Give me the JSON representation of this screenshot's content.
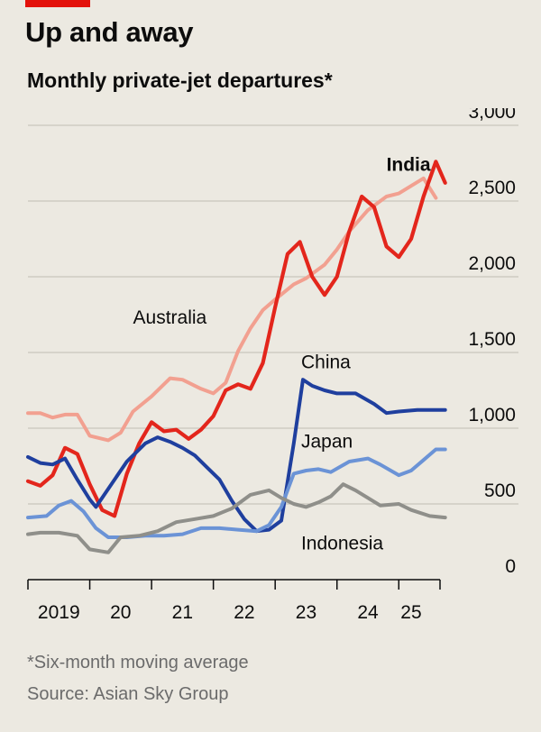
{
  "header": {
    "title": "Up and away",
    "subtitle": "Monthly private-jet departures*"
  },
  "footer": {
    "footnote": "*Six-month moving average",
    "source": "Source: Asian Sky Group"
  },
  "colors": {
    "background": "#ece9e1",
    "accent": "#e3120b",
    "india": "#e3261c",
    "australia": "#f2a090",
    "china": "#1f3f9e",
    "japan": "#6b93d6",
    "indonesia": "#8f8f8a",
    "grid": "#c9c6bd"
  },
  "chart_data": {
    "type": "line",
    "title": "Monthly private-jet departures*",
    "xlabel": "",
    "ylabel": "",
    "x_range": [
      2019.0,
      2025.667
    ],
    "ylim": [
      0,
      3000
    ],
    "y_ticks": [
      0,
      500,
      1000,
      1500,
      2000,
      2500,
      3000
    ],
    "y_tick_labels": [
      "0",
      "500",
      "1,000",
      "1,500",
      "2,000",
      "2,500",
      "3,000"
    ],
    "x_ticks": [
      {
        "value": 2019.5,
        "label": "2019"
      },
      {
        "value": 2020.5,
        "label": "20"
      },
      {
        "value": 2021.5,
        "label": "21"
      },
      {
        "value": 2022.5,
        "label": "22"
      },
      {
        "value": 2023.5,
        "label": "23"
      },
      {
        "value": 2024.5,
        "label": "24"
      },
      {
        "value": 2025.2,
        "label": "25"
      }
    ],
    "year_boundaries": [
      2019.0,
      2020.0,
      2021.0,
      2022.0,
      2023.0,
      2024.0,
      2025.0
    ],
    "grid": true,
    "legend": "direct labels",
    "series": [
      {
        "key": "australia",
        "name": "Australia",
        "label_at": [
          2020.7,
          1690
        ],
        "points": [
          [
            2019.0,
            1100
          ],
          [
            2019.2,
            1100
          ],
          [
            2019.4,
            1070
          ],
          [
            2019.6,
            1090
          ],
          [
            2019.8,
            1090
          ],
          [
            2020.0,
            950
          ],
          [
            2020.3,
            920
          ],
          [
            2020.5,
            970
          ],
          [
            2020.7,
            1110
          ],
          [
            2021.0,
            1210
          ],
          [
            2021.3,
            1330
          ],
          [
            2021.5,
            1320
          ],
          [
            2021.8,
            1260
          ],
          [
            2022.0,
            1230
          ],
          [
            2022.2,
            1300
          ],
          [
            2022.4,
            1510
          ],
          [
            2022.6,
            1660
          ],
          [
            2022.8,
            1780
          ],
          [
            2023.0,
            1850
          ],
          [
            2023.3,
            1950
          ],
          [
            2023.5,
            1990
          ],
          [
            2023.8,
            2080
          ],
          [
            2024.0,
            2180
          ],
          [
            2024.2,
            2300
          ],
          [
            2024.5,
            2440
          ],
          [
            2024.8,
            2530
          ],
          [
            2025.0,
            2550
          ],
          [
            2025.2,
            2600
          ],
          [
            2025.4,
            2650
          ],
          [
            2025.6,
            2520
          ]
        ]
      },
      {
        "key": "india",
        "name": "India",
        "label_at": [
          2024.8,
          2700
        ],
        "points": [
          [
            2019.0,
            650
          ],
          [
            2019.2,
            620
          ],
          [
            2019.4,
            690
          ],
          [
            2019.6,
            870
          ],
          [
            2019.8,
            830
          ],
          [
            2020.0,
            630
          ],
          [
            2020.2,
            460
          ],
          [
            2020.4,
            420
          ],
          [
            2020.6,
            700
          ],
          [
            2020.8,
            900
          ],
          [
            2021.0,
            1040
          ],
          [
            2021.2,
            980
          ],
          [
            2021.4,
            990
          ],
          [
            2021.6,
            930
          ],
          [
            2021.8,
            990
          ],
          [
            2022.0,
            1080
          ],
          [
            2022.2,
            1250
          ],
          [
            2022.4,
            1290
          ],
          [
            2022.6,
            1260
          ],
          [
            2022.8,
            1430
          ],
          [
            2023.0,
            1800
          ],
          [
            2023.2,
            2150
          ],
          [
            2023.4,
            2230
          ],
          [
            2023.6,
            2000
          ],
          [
            2023.8,
            1880
          ],
          [
            2024.0,
            2000
          ],
          [
            2024.2,
            2300
          ],
          [
            2024.4,
            2530
          ],
          [
            2024.6,
            2460
          ],
          [
            2024.8,
            2200
          ],
          [
            2025.0,
            2130
          ],
          [
            2025.2,
            2250
          ],
          [
            2025.4,
            2530
          ],
          [
            2025.6,
            2760
          ],
          [
            2025.75,
            2620
          ]
        ]
      },
      {
        "key": "china",
        "name": "China",
        "label_at": [
          2023.42,
          1395
        ],
        "points": [
          [
            2019.0,
            810
          ],
          [
            2019.2,
            770
          ],
          [
            2019.4,
            760
          ],
          [
            2019.6,
            800
          ],
          [
            2019.8,
            660
          ],
          [
            2020.0,
            530
          ],
          [
            2020.1,
            480
          ],
          [
            2020.3,
            600
          ],
          [
            2020.6,
            780
          ],
          [
            2020.9,
            900
          ],
          [
            2021.1,
            940
          ],
          [
            2021.3,
            910
          ],
          [
            2021.5,
            870
          ],
          [
            2021.7,
            820
          ],
          [
            2021.9,
            740
          ],
          [
            2022.1,
            660
          ],
          [
            2022.3,
            520
          ],
          [
            2022.5,
            400
          ],
          [
            2022.7,
            320
          ],
          [
            2022.9,
            330
          ],
          [
            2023.1,
            390
          ],
          [
            2023.3,
            900
          ],
          [
            2023.45,
            1320
          ],
          [
            2023.6,
            1280
          ],
          [
            2023.8,
            1250
          ],
          [
            2024.0,
            1230
          ],
          [
            2024.3,
            1230
          ],
          [
            2024.6,
            1160
          ],
          [
            2024.8,
            1100
          ],
          [
            2025.0,
            1110
          ],
          [
            2025.3,
            1120
          ],
          [
            2025.6,
            1120
          ],
          [
            2025.75,
            1120
          ]
        ]
      },
      {
        "key": "japan",
        "name": "Japan",
        "label_at": [
          2023.42,
          872
        ],
        "points": [
          [
            2019.0,
            410
          ],
          [
            2019.3,
            420
          ],
          [
            2019.5,
            490
          ],
          [
            2019.7,
            520
          ],
          [
            2019.9,
            450
          ],
          [
            2020.1,
            340
          ],
          [
            2020.3,
            280
          ],
          [
            2020.6,
            280
          ],
          [
            2020.9,
            290
          ],
          [
            2021.2,
            290
          ],
          [
            2021.5,
            300
          ],
          [
            2021.8,
            340
          ],
          [
            2022.1,
            340
          ],
          [
            2022.4,
            330
          ],
          [
            2022.7,
            320
          ],
          [
            2022.9,
            360
          ],
          [
            2023.1,
            480
          ],
          [
            2023.3,
            700
          ],
          [
            2023.5,
            720
          ],
          [
            2023.7,
            730
          ],
          [
            2023.9,
            710
          ],
          [
            2024.2,
            780
          ],
          [
            2024.5,
            800
          ],
          [
            2024.7,
            760
          ],
          [
            2025.0,
            690
          ],
          [
            2025.2,
            720
          ],
          [
            2025.4,
            790
          ],
          [
            2025.6,
            860
          ],
          [
            2025.75,
            860
          ]
        ]
      },
      {
        "key": "indonesia",
        "name": "Indonesia",
        "label_at": [
          2023.42,
          200
        ],
        "points": [
          [
            2019.0,
            300
          ],
          [
            2019.2,
            310
          ],
          [
            2019.5,
            310
          ],
          [
            2019.8,
            290
          ],
          [
            2020.0,
            200
          ],
          [
            2020.3,
            180
          ],
          [
            2020.5,
            280
          ],
          [
            2020.8,
            290
          ],
          [
            2021.1,
            320
          ],
          [
            2021.4,
            380
          ],
          [
            2021.7,
            400
          ],
          [
            2022.0,
            420
          ],
          [
            2022.3,
            470
          ],
          [
            2022.6,
            560
          ],
          [
            2022.9,
            590
          ],
          [
            2023.1,
            540
          ],
          [
            2023.3,
            500
          ],
          [
            2023.5,
            480
          ],
          [
            2023.7,
            510
          ],
          [
            2023.9,
            550
          ],
          [
            2024.1,
            630
          ],
          [
            2024.3,
            590
          ],
          [
            2024.5,
            540
          ],
          [
            2024.7,
            490
          ],
          [
            2025.0,
            500
          ],
          [
            2025.2,
            460
          ],
          [
            2025.5,
            420
          ],
          [
            2025.75,
            410
          ]
        ]
      }
    ]
  }
}
